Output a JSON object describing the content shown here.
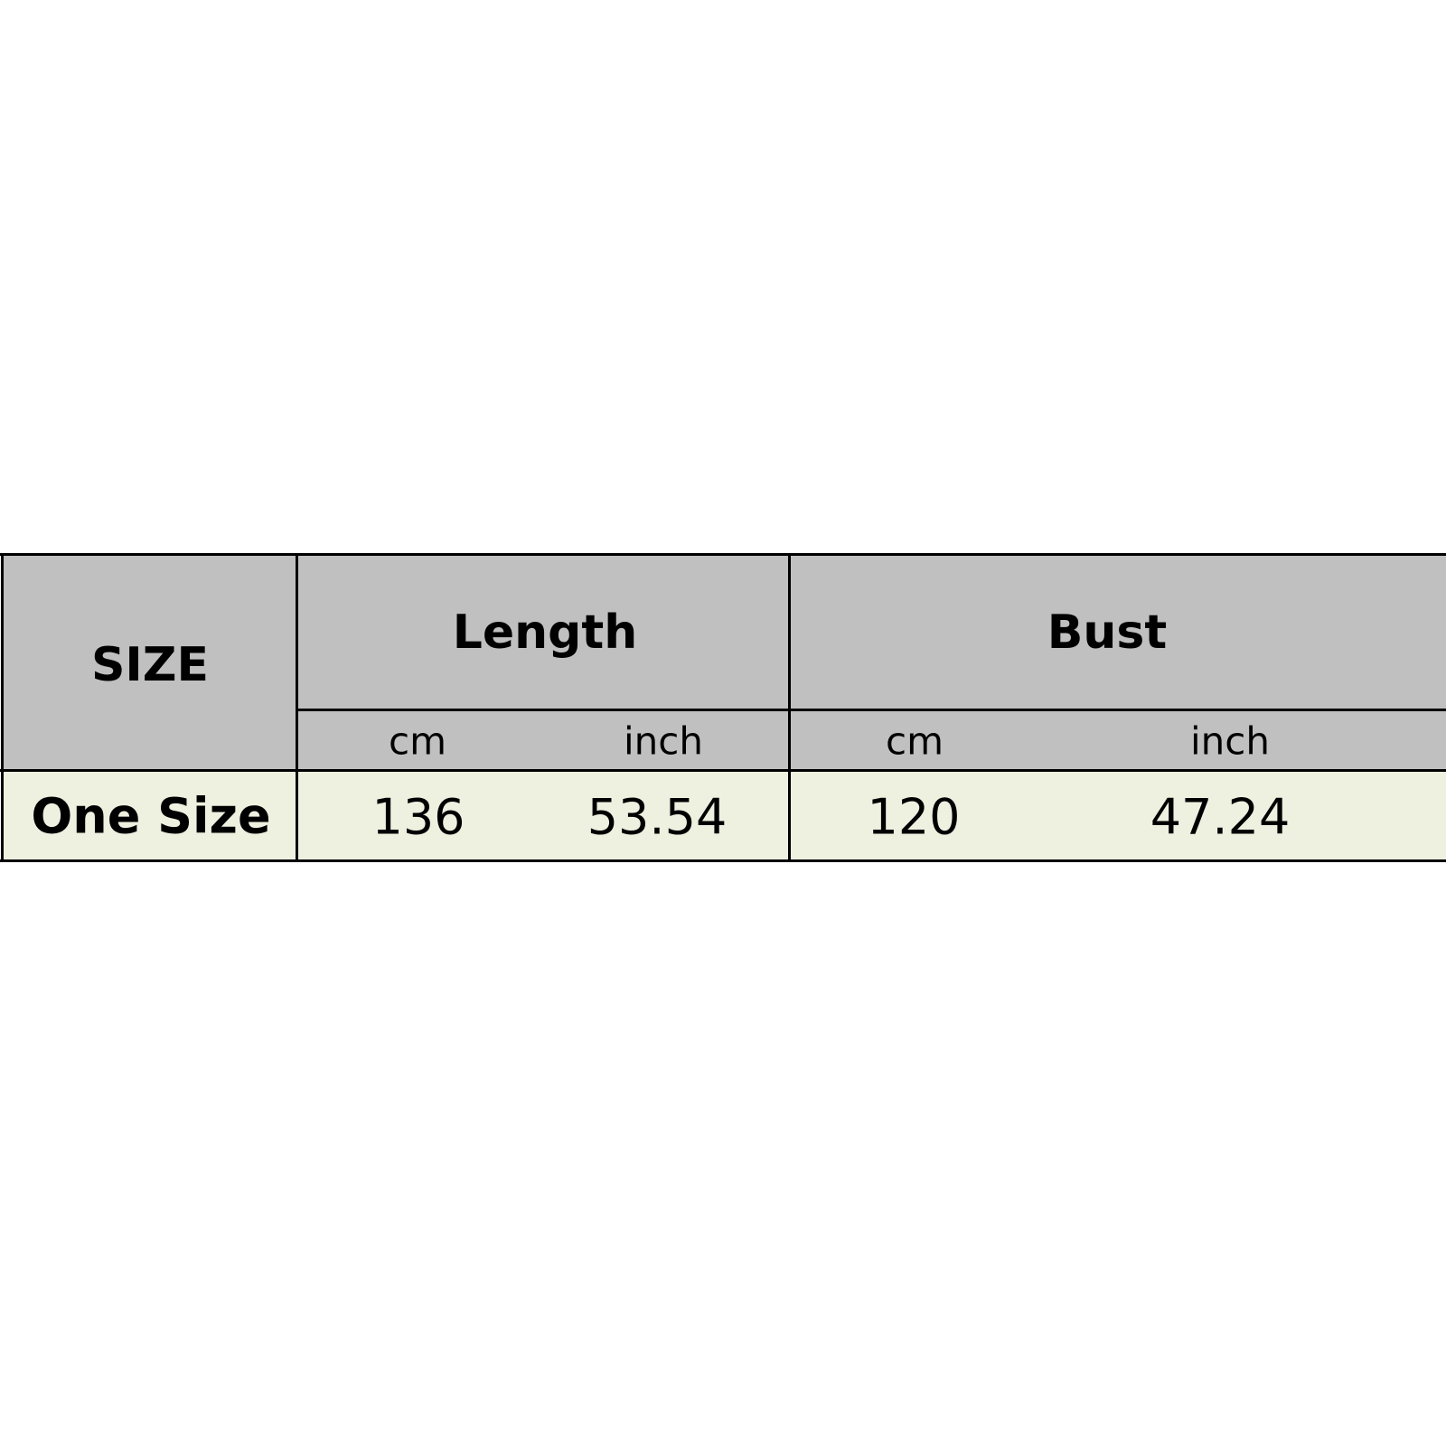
{
  "colors": {
    "header_bg": "#c0c0c0",
    "data_bg": "#eef0e0",
    "border": "#000000"
  },
  "table": {
    "size_header": "SIZE",
    "groups": [
      {
        "label": "Length",
        "units": [
          "cm",
          "inch"
        ]
      },
      {
        "label": "Bust",
        "units": [
          "cm",
          "inch"
        ]
      }
    ],
    "rows": [
      {
        "size": "One Size",
        "values": [
          "136",
          "53.54",
          "120",
          "47.24"
        ]
      }
    ]
  }
}
